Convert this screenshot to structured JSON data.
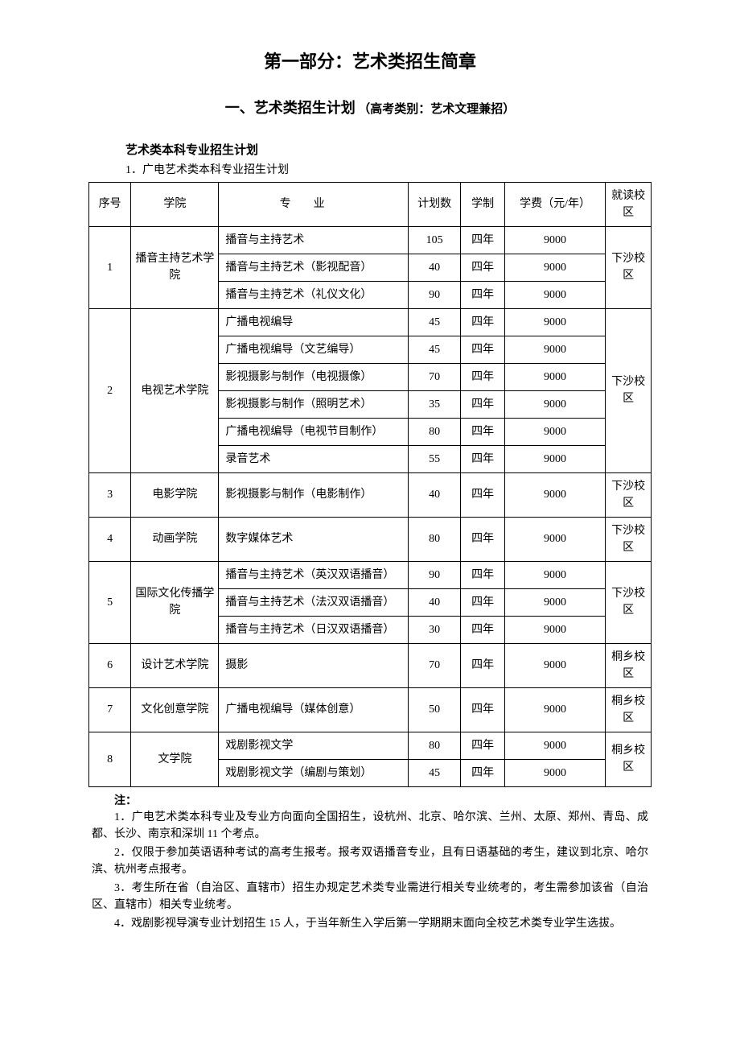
{
  "titles": {
    "main": "第一部分：艺术类招生简章",
    "sub_a": "一、艺术类招生计划",
    "sub_b": "（高考类别：艺术文理兼招）",
    "section": "艺术类本科专业招生计划",
    "section_num": "1．广电艺术类本科专业招生计划"
  },
  "headers": {
    "no": "序号",
    "college": "学院",
    "major": "专业",
    "plan": "计划数",
    "years": "学制",
    "fee": "学费（元/年）",
    "campus": "就读校区"
  },
  "col_widths": {
    "no": 48,
    "college": 100,
    "major": 216,
    "plan": 60,
    "years": 50,
    "fee": 115,
    "campus": 52
  },
  "groups": [
    {
      "no": "1",
      "college": "播音主持艺术学院",
      "campus": "下沙校区",
      "rows": [
        {
          "major": "播音与主持艺术",
          "plan": "105",
          "years": "四年",
          "fee": "9000"
        },
        {
          "major": "播音与主持艺术（影视配音）",
          "plan": "40",
          "years": "四年",
          "fee": "9000"
        },
        {
          "major": "播音与主持艺术（礼仪文化）",
          "plan": "90",
          "years": "四年",
          "fee": "9000"
        }
      ]
    },
    {
      "no": "2",
      "college": "电视艺术学院",
      "campus": "下沙校区",
      "rows": [
        {
          "major": "广播电视编导",
          "plan": "45",
          "years": "四年",
          "fee": "9000"
        },
        {
          "major": "广播电视编导（文艺编导）",
          "plan": "45",
          "years": "四年",
          "fee": "9000"
        },
        {
          "major": "影视摄影与制作（电视摄像）",
          "plan": "70",
          "years": "四年",
          "fee": "9000"
        },
        {
          "major": "影视摄影与制作（照明艺术）",
          "plan": "35",
          "years": "四年",
          "fee": "9000"
        },
        {
          "major": "广播电视编导（电视节目制作）",
          "plan": "80",
          "years": "四年",
          "fee": "9000"
        },
        {
          "major": "录音艺术",
          "plan": "55",
          "years": "四年",
          "fee": "9000"
        }
      ]
    },
    {
      "no": "3",
      "college": "电影学院",
      "campus": "下沙校区",
      "rows": [
        {
          "major": "影视摄影与制作（电影制作）",
          "plan": "40",
          "years": "四年",
          "fee": "9000"
        }
      ]
    },
    {
      "no": "4",
      "college": "动画学院",
      "campus": "下沙校区",
      "rows": [
        {
          "major": "数字媒体艺术",
          "plan": "80",
          "years": "四年",
          "fee": "9000"
        }
      ]
    },
    {
      "no": "5",
      "college": "国际文化传播学院",
      "campus": "下沙校区",
      "rows": [
        {
          "major": "播音与主持艺术（英汉双语播音）",
          "plan": "90",
          "years": "四年",
          "fee": "9000"
        },
        {
          "major": "播音与主持艺术（法汉双语播音）",
          "plan": "40",
          "years": "四年",
          "fee": "9000"
        },
        {
          "major": "播音与主持艺术（日汉双语播音）",
          "plan": "30",
          "years": "四年",
          "fee": "9000"
        }
      ]
    },
    {
      "no": "6",
      "college": "设计艺术学院",
      "campus": "桐乡校区",
      "rows": [
        {
          "major": "摄影",
          "plan": "70",
          "years": "四年",
          "fee": "9000"
        }
      ]
    },
    {
      "no": "7",
      "college": "文化创意学院",
      "campus": "桐乡校区",
      "rows": [
        {
          "major": "广播电视编导（媒体创意）",
          "plan": "50",
          "years": "四年",
          "fee": "9000"
        }
      ]
    },
    {
      "no": "8",
      "college": "文学院",
      "campus": "桐乡校区",
      "rows": [
        {
          "major": "戏剧影视文学",
          "plan": "80",
          "years": "四年",
          "fee": "9000"
        },
        {
          "major": "戏剧影视文学（编剧与策划）",
          "plan": "45",
          "years": "四年",
          "fee": "9000"
        }
      ]
    }
  ],
  "notes": {
    "heading": "注：",
    "items": [
      "1．广电艺术类本科专业及专业方向面向全国招生，设杭州、北京、哈尔滨、兰州、太原、郑州、青岛、成都、长沙、南京和深圳 11 个考点。",
      "2．仅限于参加英语语种考试的高考生报考。报考双语播音专业，且有日语基础的考生，建议到北京、哈尔滨、杭州考点报考。",
      "3．考生所在省（自治区、直辖市）招生办规定艺术类专业需进行相关专业统考的，考生需参加该省（自治区、直辖市）相关专业统考。",
      "4．戏剧影视导演专业计划招生 15 人，于当年新生入学后第一学期期末面向全校艺术类专业学生选拔。"
    ]
  }
}
